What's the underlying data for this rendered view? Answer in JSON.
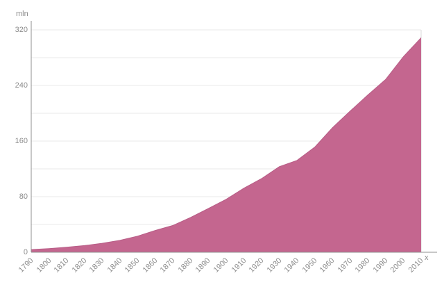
{
  "chart": {
    "y_unit_label": "mln",
    "x_axis_label": "x",
    "colors": {
      "background": "#ffffff",
      "area_fill": "#c4668f",
      "area_edge": "#b85e87",
      "grid": "#e9e9e9",
      "frame": "#d9d9d9",
      "axis": "#8f8f8f",
      "text": "#8c8c8c"
    }
  },
  "chart_data": {
    "type": "area",
    "title": "",
    "xlabel": "x",
    "ylabel": "mln",
    "x": [
      1790,
      1800,
      1810,
      1820,
      1830,
      1840,
      1850,
      1860,
      1870,
      1880,
      1890,
      1900,
      1910,
      1920,
      1930,
      1940,
      1950,
      1960,
      1970,
      1980,
      1990,
      2000,
      2010
    ],
    "values": [
      3.9,
      5.3,
      7.2,
      9.6,
      12.9,
      17.1,
      23.2,
      31.4,
      38.6,
      50.2,
      63.0,
      76.2,
      92.2,
      106.0,
      123.2,
      132.2,
      151.3,
      179.3,
      203.2,
      226.5,
      248.7,
      281.4,
      308.7
    ],
    "ylim": [
      0,
      320
    ],
    "y_ticks": [
      0,
      80,
      160,
      240,
      320
    ],
    "grid_interval": 40,
    "x_tick_interval": 10,
    "grid": true,
    "legend": false
  }
}
